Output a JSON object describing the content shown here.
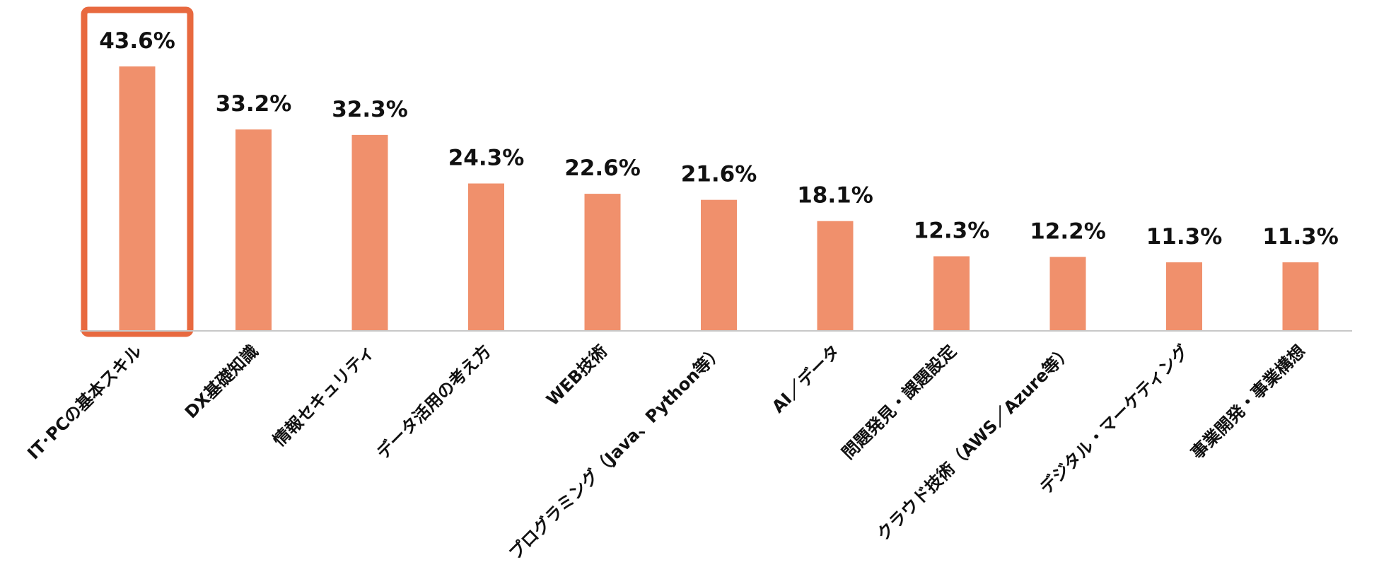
{
  "chart_data": {
    "type": "bar",
    "categories": [
      "IT･PCの基本スキル",
      "DX基礎知識",
      "情報セキュリティ",
      "データ活用の考え方",
      "WEB技術",
      "プログラミング（Java、Python等）",
      "AI／データ",
      "問題発見・課題設定",
      "クラウド技術（AWS／Azure等）",
      "デジタル・マーケティング",
      "事業開発・事業構想"
    ],
    "values": [
      43.6,
      33.2,
      32.3,
      24.3,
      22.6,
      21.6,
      18.1,
      12.3,
      12.2,
      11.3,
      11.3
    ],
    "value_labels": [
      "43.6%",
      "33.2%",
      "32.3%",
      "24.3%",
      "22.6%",
      "21.6%",
      "18.1%",
      "12.3%",
      "12.2%",
      "11.3%",
      "11.3%"
    ],
    "title": "",
    "xlabel": "",
    "ylabel": "",
    "ylim": [
      0,
      50
    ],
    "grid": false,
    "legend": "none",
    "highlight_index": 0,
    "colors": {
      "bar": "#F0906C",
      "highlight_border": "#E8693F",
      "axis": "#C8C8C8",
      "text": "#111111"
    }
  }
}
